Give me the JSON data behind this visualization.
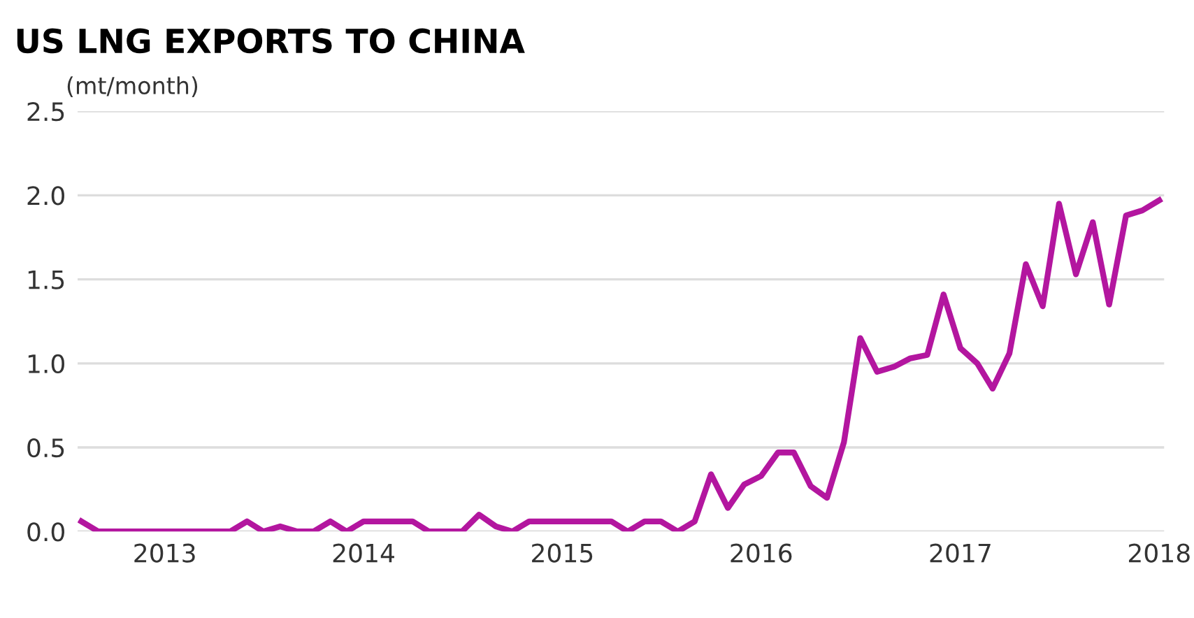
{
  "chart_data": {
    "type": "line",
    "title": "US LNG EXPORTS TO CHINA",
    "ylabel": "(mt/month)",
    "x": [
      "2012-08",
      "2012-09",
      "2012-10",
      "2012-11",
      "2012-12",
      "2013-01",
      "2013-02",
      "2013-03",
      "2013-04",
      "2013-05",
      "2013-06",
      "2013-07",
      "2013-08",
      "2013-09",
      "2013-10",
      "2013-11",
      "2013-12",
      "2014-01",
      "2014-02",
      "2014-03",
      "2014-04",
      "2014-05",
      "2014-06",
      "2014-07",
      "2014-08",
      "2014-09",
      "2014-10",
      "2014-11",
      "2014-12",
      "2015-01",
      "2015-02",
      "2015-03",
      "2015-04",
      "2015-05",
      "2015-06",
      "2015-07",
      "2015-08",
      "2015-09",
      "2015-10",
      "2015-11",
      "2015-12",
      "2016-01",
      "2016-02",
      "2016-03",
      "2016-04",
      "2016-05",
      "2016-06",
      "2016-07",
      "2016-08",
      "2016-09",
      "2016-10",
      "2016-11",
      "2016-12",
      "2017-01",
      "2017-02",
      "2017-03",
      "2017-04",
      "2017-05",
      "2017-06",
      "2017-07",
      "2017-08",
      "2017-09",
      "2017-10",
      "2017-11",
      "2017-12",
      "2018-01"
    ],
    "series": [
      {
        "color": "#b3169f",
        "values": [
          0.06,
          0,
          0,
          0,
          0,
          0,
          0,
          0,
          0,
          0,
          0.06,
          0,
          0.03,
          0,
          0,
          0.06,
          0,
          0.06,
          0.06,
          0.06,
          0.06,
          0,
          0,
          0,
          0.1,
          0.03,
          0,
          0.06,
          0.06,
          0.06,
          0.06,
          0.06,
          0.06,
          0,
          0.06,
          0.06,
          0,
          0.06,
          0.34,
          0.14,
          0.28,
          0.33,
          0.47,
          0.47,
          0.27,
          0.2,
          0.53,
          1.15,
          0.95,
          0.98,
          1.03,
          1.05,
          1.41,
          1.09,
          1.0,
          0.85,
          1.06,
          1.59,
          1.34,
          1.95,
          1.53,
          1.84,
          1.35,
          1.88,
          1.91,
          1.97
        ]
      }
    ],
    "xlim": [
      "2012-07-25",
      "2018-01-10"
    ],
    "xticks": [
      {
        "value": "2013-01",
        "label": "2013"
      },
      {
        "value": "2014-01",
        "label": "2014"
      },
      {
        "value": "2015-01",
        "label": "2015"
      },
      {
        "value": "2016-01",
        "label": "2016"
      },
      {
        "value": "2017-01",
        "label": "2017"
      },
      {
        "value": "2018-01",
        "label": "2018"
      }
    ],
    "ylim": [
      0,
      2.5
    ],
    "yticks": [
      {
        "value": 0,
        "label": "0.0"
      },
      0.5,
      {
        "value": 1,
        "label": "1.0"
      },
      1.5,
      {
        "value": 2,
        "label": "2.0"
      },
      2.5
    ],
    "grid": "y",
    "legend": false,
    "marker": "none",
    "line_style": "solid"
  }
}
